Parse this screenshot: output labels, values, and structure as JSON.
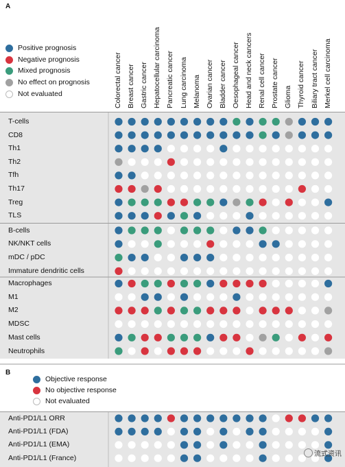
{
  "colors": {
    "positive": "#2e6e9e",
    "negative": "#d8343f",
    "mixed": "#3a9c7c",
    "no_effect": "#a1a1a1",
    "not_evaluated": "#ffffff",
    "panel_bg": "#e6e6e6"
  },
  "panel_a": {
    "letter": "A",
    "legend": [
      {
        "key": "P",
        "label": "Positive prognosis",
        "color": "#2e6e9e"
      },
      {
        "key": "N",
        "label": "Negative prognosis",
        "color": "#d8343f"
      },
      {
        "key": "M",
        "label": "Mixed prognosis",
        "color": "#3a9c7c"
      },
      {
        "key": "G",
        "label": "No effect on prognosis",
        "color": "#a1a1a1"
      },
      {
        "key": "E",
        "label": "Not evaluated",
        "color": "#ffffff"
      }
    ]
  },
  "panel_b": {
    "letter": "B",
    "legend": [
      {
        "key": "P",
        "label": "Objective response",
        "color": "#2e6e9e"
      },
      {
        "key": "N",
        "label": "No objective response",
        "color": "#d8343f"
      },
      {
        "key": "E",
        "label": "Not evaluated",
        "color": "#ffffff"
      }
    ]
  },
  "watermark": "流式资讯",
  "chart_data": {
    "type": "table",
    "columns": [
      "Colorectal cancer",
      "Breast cancer",
      "Gastric cancer",
      "Hepatocellular carcinoma",
      "Pancreatic cancer",
      "Lung carcinoma",
      "Melanoma",
      "Ovarian cancer",
      "Bladder cancer",
      "Oesophageal cancer",
      "Head and neck cancers",
      "Renal cell cancer",
      "Prostate cancer",
      "Glioma",
      "Thyroid cancer",
      "Biliary tract cancer",
      "Merkel cell carcinoma"
    ],
    "groups": [
      {
        "rows": [
          {
            "label": "T-cells",
            "cells": "PPPPPPPPPMPMMGPPP"
          },
          {
            "label": "CD8",
            "cells": "PPPPPPPPPPPMPGPPP"
          },
          {
            "label": "Th1",
            "cells": "PPPPEEEEPEEEEEEEE"
          },
          {
            "label": "Th2",
            "cells": "GEEENEEEEEEEEEEEE"
          },
          {
            "label": "Tfh",
            "cells": "PPEEEEEEEEEEEEEEE"
          },
          {
            "label": "Th17",
            "cells": "NNGNEEEEEEEEEENEE"
          },
          {
            "label": "Treg",
            "cells": "PMMMNNMMPGMNENEEP"
          },
          {
            "label": "TLS",
            "cells": "PPPNPMPEEEPEEEEEE"
          }
        ]
      },
      {
        "rows": [
          {
            "label": "B-cells",
            "cells": "PMMMEMMMEPPMEEEEE"
          },
          {
            "label": "NK/NKT cells",
            "cells": "PEEMEEENEEEPPEEEE"
          },
          {
            "label": "mDC / pDC",
            "cells": "MPPEEPPPEEEEEEEEE"
          },
          {
            "label": "Immature dendritic cells",
            "cells": "NEEEEEEEEEEEEEEEE"
          }
        ]
      },
      {
        "rows": [
          {
            "label": "Macrophages",
            "cells": "PNMMNMMPNNNNEEEEP"
          },
          {
            "label": "M1",
            "cells": "EEPPEPEEEPEEEEEEE"
          },
          {
            "label": "M2",
            "cells": "NNNMNMMNNNENNNEEG"
          },
          {
            "label": "MDSC",
            "cells": "EEEEEEEEEEEEEEEEE"
          },
          {
            "label": "Mast cells",
            "cells": "PMNNMMMPNNEGMENEN"
          },
          {
            "label": "Neutrophils",
            "cells": "MENENNNEEENEEEEEG"
          }
        ]
      },
      {
        "panel": "B",
        "rows": [
          {
            "label": "Anti-PD1/L1 ORR",
            "cells": "PPPPNPPPPPPPENNPP"
          },
          {
            "label": "Anti-PD1/L1 (FDA)",
            "cells": "PPPPEPPEPEPPEEEEP"
          },
          {
            "label": "Anti-PD1/L1 (EMA)",
            "cells": "EEEEEPPEPEEPEEEEP"
          },
          {
            "label": "Anti-PD1/L1 (France)",
            "cells": "EEEEEPPEEEEPEEEEP"
          }
        ]
      }
    ],
    "legend_codes": {
      "P": "positive",
      "N": "negative",
      "M": "mixed",
      "G": "no effect",
      "E": "not evaluated"
    }
  }
}
